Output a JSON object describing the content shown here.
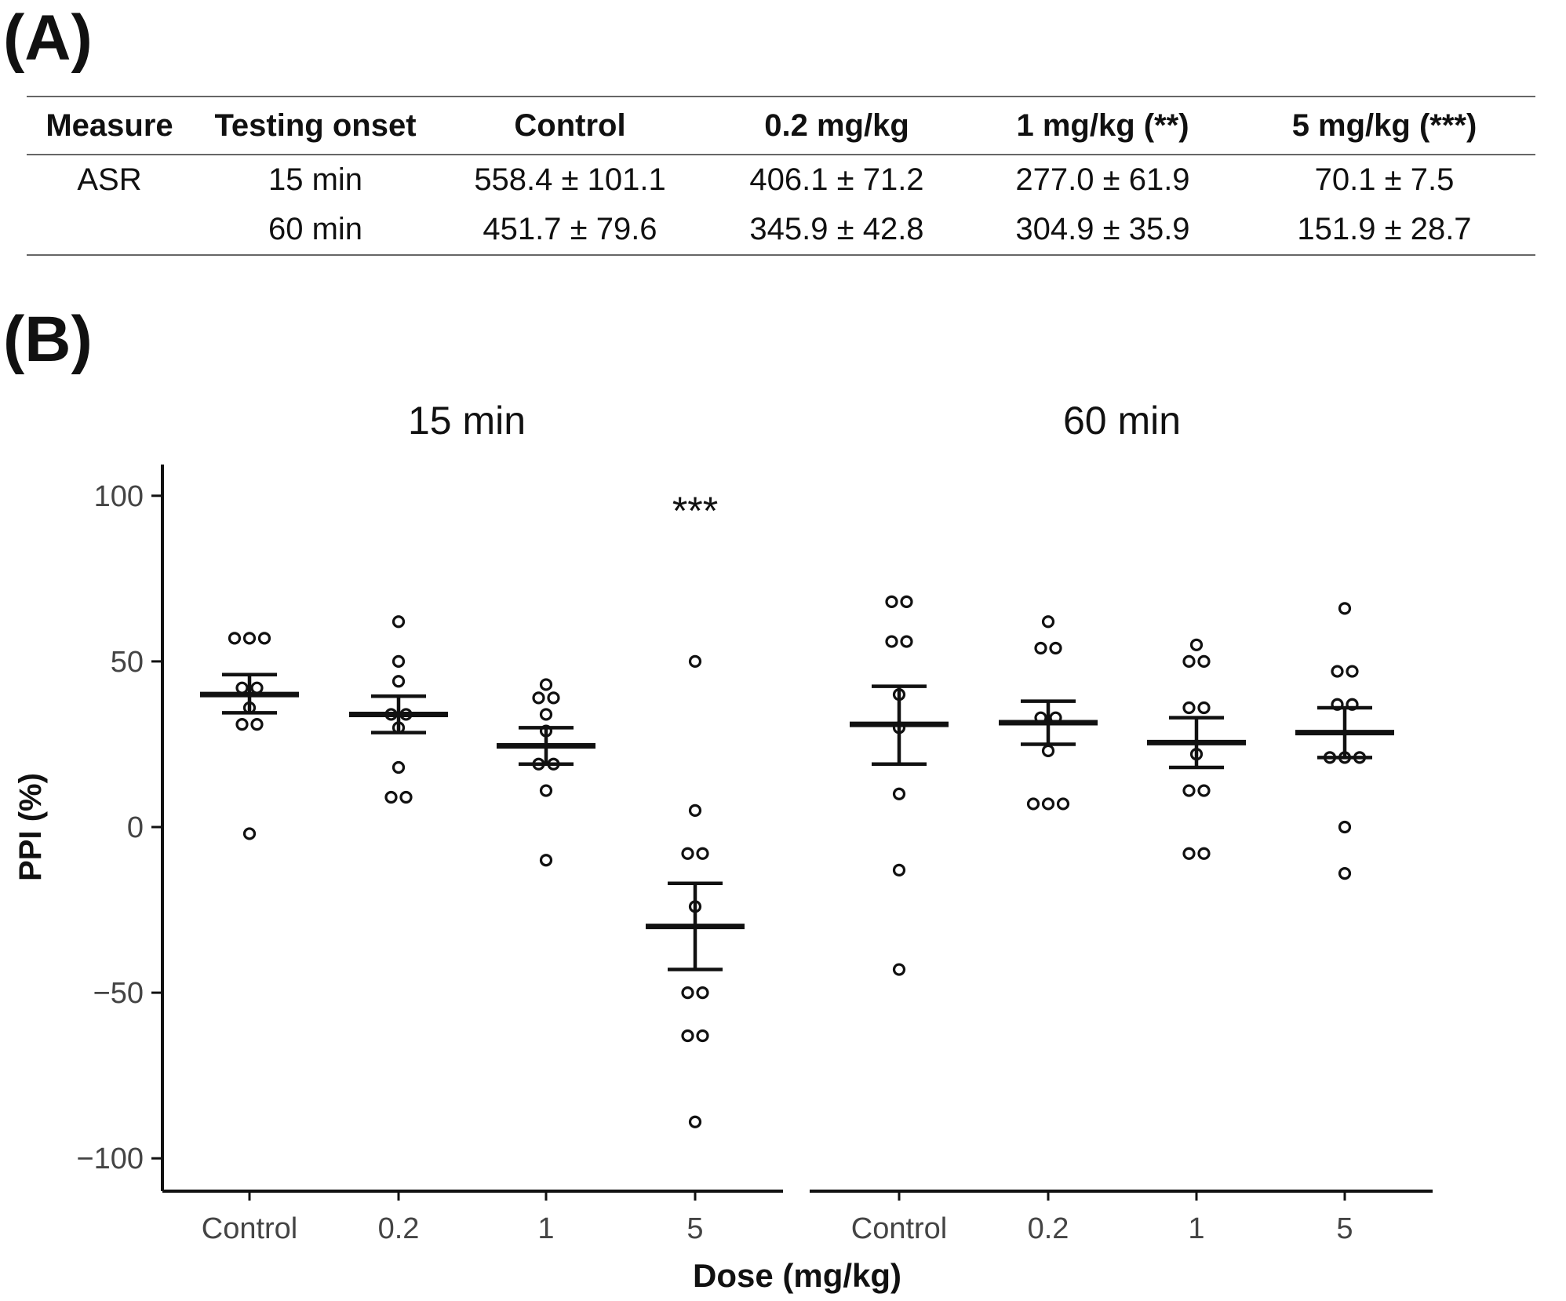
{
  "panel_a_label": "(A)",
  "panel_b_label": "(B)",
  "table": {
    "headers": [
      "Measure",
      "Testing onset",
      "Control",
      "0.2 mg/kg",
      "1 mg/kg (**)",
      "5 mg/kg (***)"
    ],
    "rows": [
      [
        "ASR",
        "15 min",
        "558.4 ± 101.1",
        "406.1 ± 71.2",
        "277.0 ± 61.9",
        "70.1 ± 7.5"
      ],
      [
        "",
        "60 min",
        "451.7 ± 79.6",
        "345.9 ± 42.8",
        "304.9 ± 35.9",
        "151.9 ± 28.7"
      ]
    ]
  },
  "chart_data": {
    "type": "scatter",
    "xlabel": "Dose (mg/kg)",
    "ylabel": "PPI (%)",
    "ylim": [
      -110,
      110
    ],
    "yticks": [
      100,
      50,
      0,
      -50,
      -100
    ],
    "ytick_labels": [
      "100",
      "50",
      "0",
      "−50",
      "−100"
    ],
    "categories": [
      "Control",
      "0.2",
      "1",
      "5"
    ],
    "panels": [
      {
        "title": "15 min",
        "groups": [
          {
            "dose": "Control",
            "mean": 40,
            "sem_low": 34.5,
            "sem_high": 46,
            "points": [
              57,
              57,
              57,
              42,
              42,
              36,
              31,
              31,
              -2
            ],
            "annotation": ""
          },
          {
            "dose": "0.2",
            "mean": 34,
            "sem_low": 28.5,
            "sem_high": 39.5,
            "points": [
              62,
              50,
              44,
              34,
              34,
              30,
              18,
              9,
              9
            ],
            "annotation": ""
          },
          {
            "dose": "1",
            "mean": 24.5,
            "sem_low": 19,
            "sem_high": 30,
            "points": [
              43,
              39,
              39,
              34,
              29,
              19,
              19,
              11,
              -10
            ],
            "annotation": ""
          },
          {
            "dose": "5",
            "mean": -30,
            "sem_low": -43,
            "sem_high": -17,
            "points": [
              50,
              5,
              -8,
              -8,
              -24,
              -50,
              -50,
              -63,
              -63,
              -89
            ],
            "annotation": "***"
          }
        ]
      },
      {
        "title": "60 min",
        "groups": [
          {
            "dose": "Control",
            "mean": 31,
            "sem_low": 19,
            "sem_high": 42.5,
            "points": [
              68,
              68,
              56,
              56,
              40,
              30,
              10,
              -13,
              -43
            ],
            "annotation": ""
          },
          {
            "dose": "0.2",
            "mean": 31.5,
            "sem_low": 25,
            "sem_high": 38,
            "points": [
              62,
              54,
              54,
              33,
              33,
              23,
              7,
              7,
              7
            ],
            "annotation": ""
          },
          {
            "dose": "1",
            "mean": 25.5,
            "sem_low": 18,
            "sem_high": 33,
            "points": [
              55,
              50,
              50,
              36,
              36,
              22,
              11,
              11,
              -8,
              -8
            ],
            "annotation": ""
          },
          {
            "dose": "5",
            "mean": 28.5,
            "sem_low": 21,
            "sem_high": 36,
            "points": [
              66,
              47,
              47,
              37,
              37,
              21,
              21,
              21,
              0,
              -14
            ],
            "annotation": ""
          }
        ]
      }
    ]
  }
}
